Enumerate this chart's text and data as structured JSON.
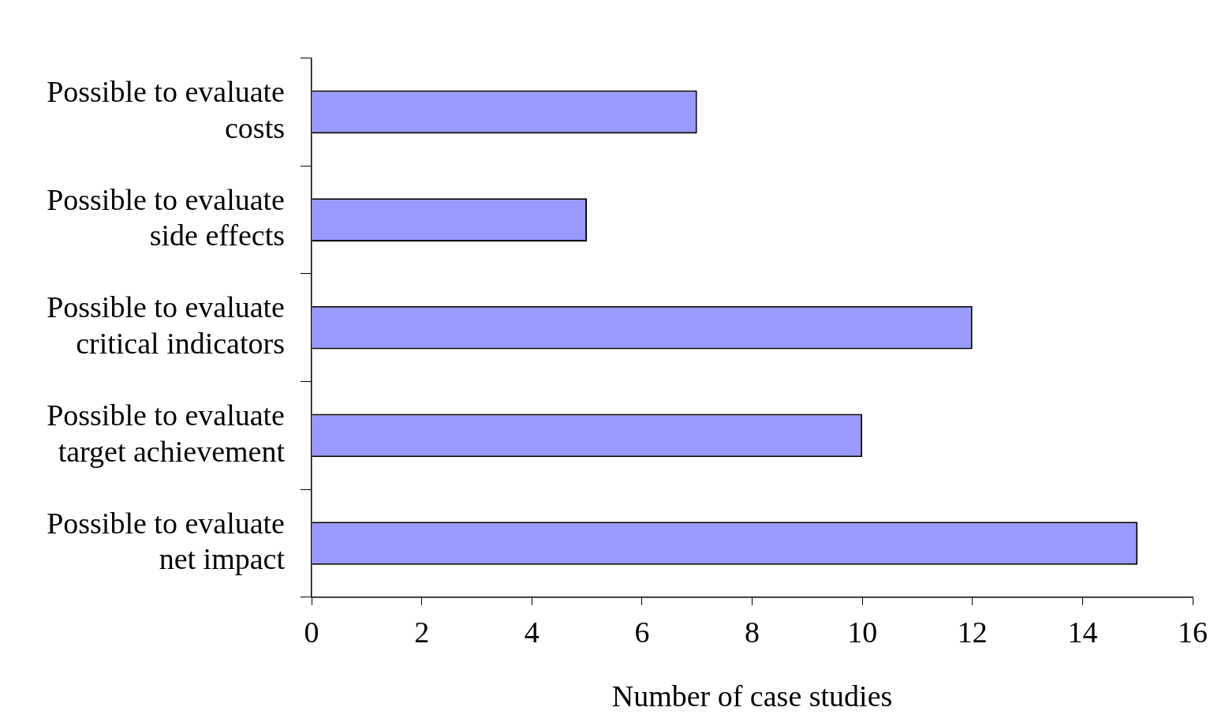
{
  "chart_data": {
    "type": "bar",
    "orientation": "horizontal",
    "xlabel": "Number of case studies",
    "categories": [
      "Possible to evaluate costs",
      "Possible to evaluate side effects",
      "Possible to evaluate critical indicators",
      "Possible to evaluate target achievement",
      "Possible to evaluate net impact"
    ],
    "values": [
      7,
      5,
      12,
      10,
      15
    ],
    "color": "#9999ff",
    "xlim": [
      0,
      16
    ],
    "xticks": [
      0,
      2,
      4,
      6,
      8,
      10,
      12,
      14,
      16
    ],
    "legend": false
  }
}
